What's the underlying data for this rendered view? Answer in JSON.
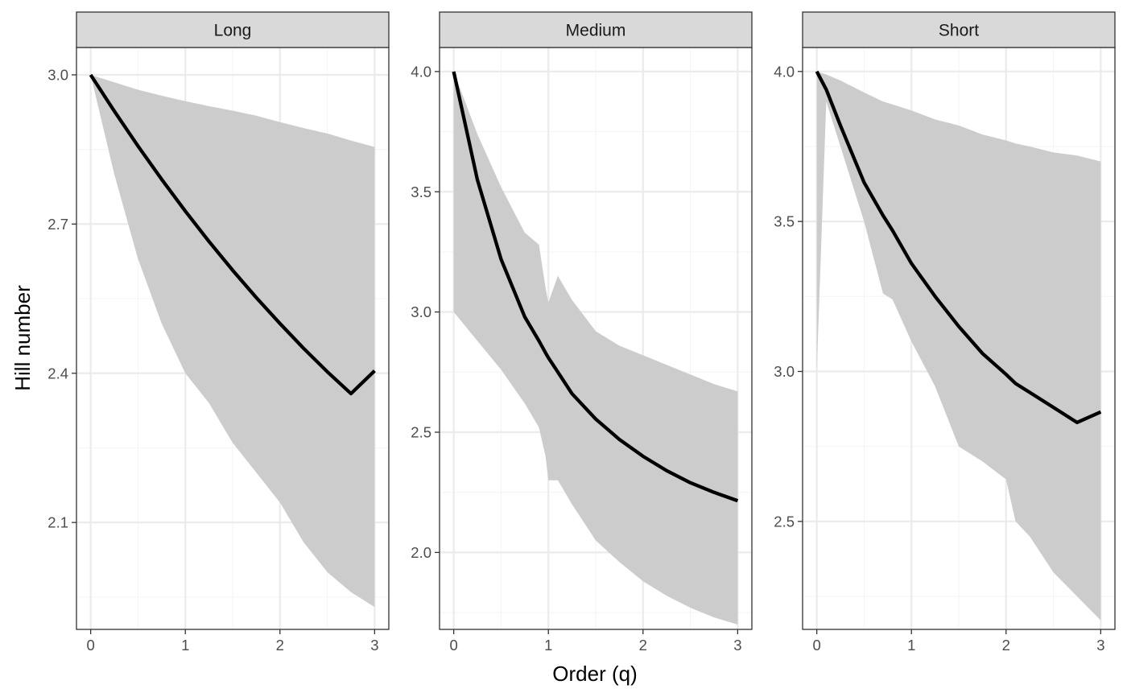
{
  "chart_data": {
    "type": "area",
    "xlabel": "Order (q)",
    "ylabel": "Hill number",
    "colors": {
      "line": "#000000",
      "ribbon": "#cccccc",
      "strip_fill": "#d9d9d9",
      "grid_major": "#ebebeb",
      "grid_minor": "#f5f5f5",
      "panel_border": "#333333",
      "tick_label": "#4d4d4d"
    },
    "panels": [
      {
        "name": "Long",
        "xlim": [
          -0.15,
          3.15
        ],
        "ylim": [
          1.885,
          3.055
        ],
        "xticks": [
          0,
          1,
          2,
          3
        ],
        "yticks": [
          2.1,
          2.4,
          2.7,
          3.0
        ],
        "ytick_labels": [
          "2.1",
          "2.4",
          "2.7",
          "3.0"
        ],
        "series": {
          "x": [
            0,
            0.25,
            0.5,
            0.75,
            1.0,
            1.25,
            1.5,
            1.75,
            2.0,
            2.25,
            2.5,
            2.75,
            3.0
          ],
          "estimate": [
            3.0,
            2.927,
            2.857,
            2.79,
            2.726,
            2.665,
            2.607,
            2.552,
            2.5,
            2.45,
            2.403,
            2.359,
            2.405
          ],
          "lower": [
            3.0,
            2.8,
            2.63,
            2.5,
            2.4,
            2.34,
            2.26,
            2.2,
            2.14,
            2.06,
            2.0,
            1.96,
            1.93
          ],
          "upper": [
            3.0,
            2.985,
            2.97,
            2.958,
            2.947,
            2.937,
            2.928,
            2.918,
            2.905,
            2.893,
            2.882,
            2.868,
            2.855
          ]
        }
      },
      {
        "name": "Medium",
        "xlim": [
          -0.15,
          3.15
        ],
        "ylim": [
          1.68,
          4.1
        ],
        "xticks": [
          0,
          1,
          2,
          3
        ],
        "yticks": [
          2.0,
          2.5,
          3.0,
          3.5,
          4.0
        ],
        "ytick_labels": [
          "2.0",
          "2.5",
          "3.0",
          "3.5",
          "4.0"
        ],
        "series": {
          "x": [
            0,
            0.25,
            0.5,
            0.75,
            0.9,
            0.97,
            1.0,
            1.1,
            1.25,
            1.5,
            1.75,
            2.0,
            2.25,
            2.5,
            2.75,
            3.0
          ],
          "estimate": [
            4.0,
            3.55,
            3.22,
            2.98,
            2.88,
            2.83,
            2.81,
            2.75,
            2.66,
            2.555,
            2.47,
            2.4,
            2.34,
            2.29,
            2.25,
            2.215
          ],
          "lower": [
            3.0,
            2.88,
            2.76,
            2.62,
            2.52,
            2.4,
            2.3,
            2.3,
            2.2,
            2.05,
            1.96,
            1.88,
            1.82,
            1.77,
            1.73,
            1.7
          ],
          "upper": [
            4.0,
            3.74,
            3.52,
            3.33,
            3.28,
            3.1,
            3.04,
            3.15,
            3.05,
            2.92,
            2.86,
            2.82,
            2.78,
            2.74,
            2.7,
            2.67
          ]
        }
      },
      {
        "name": "Short",
        "xlim": [
          -0.15,
          3.15
        ],
        "ylim": [
          2.14,
          4.08
        ],
        "xticks": [
          0,
          1,
          2,
          3
        ],
        "yticks": [
          2.5,
          3.0,
          3.5,
          4.0
        ],
        "ytick_labels": [
          "2.5",
          "3.0",
          "3.5",
          "4.0"
        ],
        "series": {
          "x": [
            0,
            0.1,
            0.25,
            0.5,
            0.7,
            0.8,
            1.0,
            1.25,
            1.5,
            1.75,
            2.0,
            2.1,
            2.25,
            2.5,
            2.75,
            3.0
          ],
          "estimate": [
            4.0,
            3.94,
            3.82,
            3.63,
            3.52,
            3.47,
            3.36,
            3.25,
            3.15,
            3.06,
            2.99,
            2.96,
            2.93,
            2.88,
            2.83,
            2.865
          ],
          "lower": [
            3.0,
            3.9,
            3.75,
            3.5,
            3.26,
            3.24,
            3.1,
            2.95,
            2.75,
            2.7,
            2.64,
            2.5,
            2.45,
            2.33,
            2.25,
            2.17
          ],
          "upper": [
            4.0,
            3.99,
            3.97,
            3.93,
            3.9,
            3.89,
            3.87,
            3.84,
            3.82,
            3.79,
            3.77,
            3.76,
            3.75,
            3.73,
            3.72,
            3.7
          ]
        }
      }
    ]
  }
}
